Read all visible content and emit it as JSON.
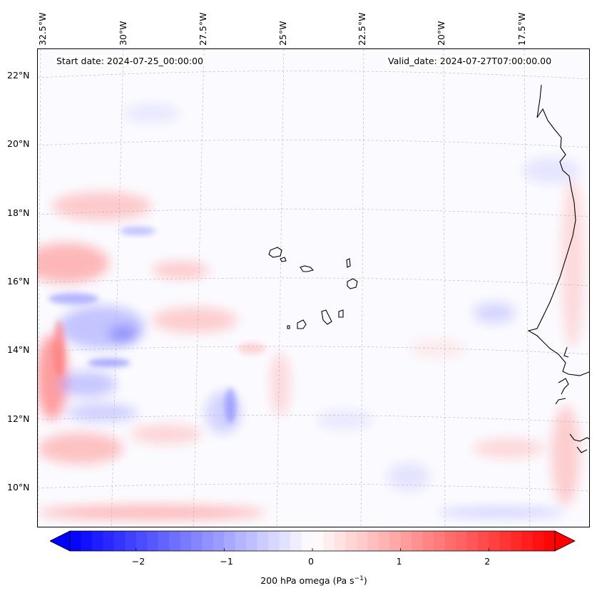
{
  "header": {
    "start_date": "Start date: 2024-07-25_00:00:00",
    "valid_date": "Valid_date: 2024-07-27T07:00:00.00"
  },
  "longitude_labels": [
    "32.5°W",
    "30°W",
    "27.5°W",
    "25°W",
    "22.5°W",
    "20°W",
    "17.5°W"
  ],
  "latitude_labels": [
    "22°N",
    "20°N",
    "18°N",
    "16°N",
    "14°N",
    "12°N",
    "10°N"
  ],
  "colorbar": {
    "title": "200 hPa omega (Pa s",
    "title_sup": "−1",
    "title_end": ")",
    "tick_labels": [
      "−2",
      "−1",
      "0",
      "1",
      "2"
    ],
    "tick_values": [
      -2,
      -1,
      0,
      1,
      2
    ],
    "range": [
      -2.75,
      2.75
    ],
    "extend": "both",
    "negative_color": "#0000ff",
    "zero_color": "#ffffff",
    "positive_color": "#ff0000"
  },
  "colors": {
    "coastline": "#000000",
    "grid": "#b0b0c8"
  }
}
